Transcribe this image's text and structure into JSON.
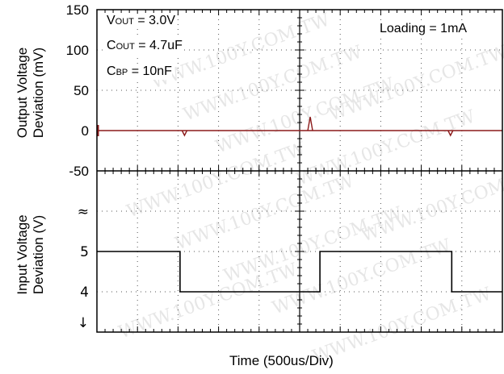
{
  "chart_data": [
    {
      "type": "line",
      "ylabel_line1": "Output Voltage",
      "ylabel_line2": "Deviation (mV)",
      "y_ticks": [
        "150",
        "100",
        "50",
        "0",
        "-50"
      ],
      "ylim": [
        -50,
        150
      ],
      "x_divisions": 10,
      "series": [
        {
          "color": "#8b1a1a",
          "x": [
            0,
            1.0,
            1.05,
            1.1,
            1.2,
            2.5,
            5.0,
            5.18,
            5.25,
            5.35,
            5.5,
            8.5,
            8.62,
            8.66,
            8.72,
            8.85,
            10
          ],
          "y": [
            0,
            0,
            0,
            0,
            0,
            0,
            0,
            0,
            0,
            0,
            0,
            0,
            0,
            0,
            0,
            0,
            0
          ],
          "spikes_x": [
            2.16,
            5.26,
            8.72
          ],
          "spikes_y": [
            -6,
            17,
            -6
          ]
        }
      ]
    },
    {
      "type": "line",
      "ylabel_line1": "Input Voltage",
      "ylabel_line2": "Deviation (V)",
      "y_ticks": [
        "≈",
        "5",
        "4",
        "↓"
      ],
      "ylim": [
        3,
        6
      ],
      "x_divisions": 10,
      "series": [
        {
          "color": "#000000",
          "x": [
            0,
            2.05,
            2.05,
            5.5,
            5.5,
            8.75,
            8.75,
            10
          ],
          "y": [
            5,
            5,
            4,
            4,
            5,
            5,
            4,
            4
          ]
        }
      ]
    }
  ],
  "annotations": {
    "vout_label": "V",
    "vout_sub": "OUT",
    "vout_value": " = 3.0V",
    "cout_label": "C",
    "cout_sub": "OUT",
    "cout_value": " = 4.7uF",
    "cbp_label": "C",
    "cbp_sub": "BP",
    "cbp_value": " = 10nF",
    "loading": "Loading = 1mA"
  },
  "xlabel": "Time  (500us/Div)",
  "watermark": "WWW.100Y.COM.TW"
}
